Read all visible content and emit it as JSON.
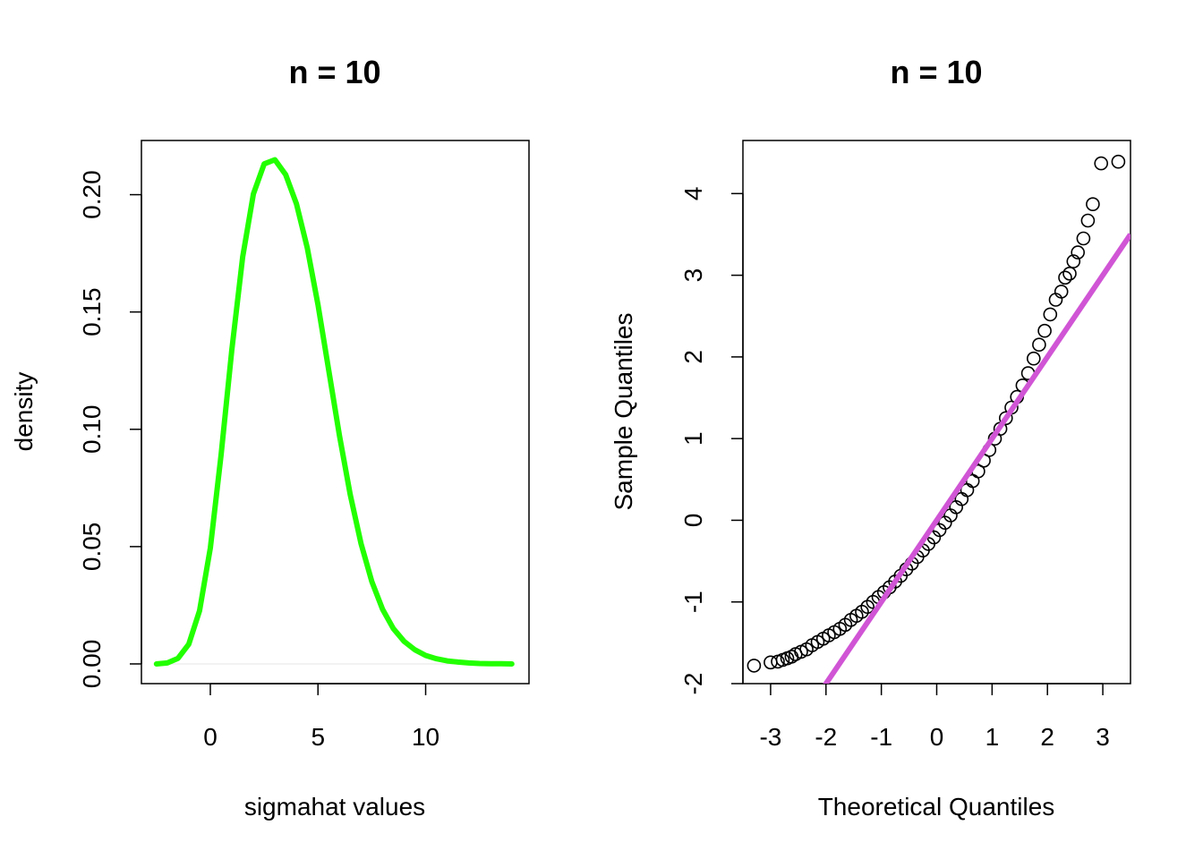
{
  "chart_data": [
    {
      "type": "line",
      "title": "n = 10",
      "xlabel": "sigmahat values",
      "ylabel": "density",
      "xlim": [
        -3.2,
        14.8
      ],
      "ylim": [
        -0.0084,
        0.2231
      ],
      "x_ticks": [
        0,
        5,
        10
      ],
      "x_tick_labels": [
        "0",
        "5",
        "10"
      ],
      "y_ticks": [
        0.0,
        0.05,
        0.1,
        0.15,
        0.2
      ],
      "y_tick_labels": [
        "0.00",
        "0.05",
        "0.10",
        "0.15",
        "0.20"
      ],
      "grid": false,
      "series": [
        {
          "color": "#22ff00",
          "x": [
            -2.5,
            -2,
            -1.5,
            -1,
            -0.5,
            0,
            0.5,
            1,
            1.5,
            2,
            2.5,
            3,
            3.5,
            4,
            4.5,
            5,
            5.5,
            6,
            6.5,
            7,
            7.5,
            8,
            8.5,
            9,
            9.5,
            10,
            10.5,
            11,
            11.5,
            12,
            12.5,
            13,
            13.5,
            14
          ],
          "y": [
            0.0,
            0.0004,
            0.0024,
            0.0084,
            0.0226,
            0.0494,
            0.0891,
            0.1339,
            0.1734,
            0.2003,
            0.2131,
            0.2149,
            0.2085,
            0.1961,
            0.1775,
            0.153,
            0.1251,
            0.0972,
            0.0721,
            0.0512,
            0.0351,
            0.0233,
            0.0151,
            0.0096,
            0.006,
            0.0036,
            0.0022,
            0.0013,
            0.0008,
            0.0004,
            0.0002,
            0.0001,
            0.0001,
            0.0
          ]
        }
      ],
      "baseline": {
        "y": 0,
        "x_range": [
          -2.5,
          14
        ],
        "color": "#e6e6e6"
      }
    },
    {
      "type": "scatter",
      "title": "n = 10",
      "xlabel": "Theoretical Quantiles",
      "ylabel": "Sample Quantiles",
      "xlim": [
        -3.5,
        3.5
      ],
      "ylim": [
        -2.0,
        4.65
      ],
      "x_ticks": [
        -3,
        -2,
        -1,
        0,
        1,
        2,
        3
      ],
      "x_tick_labels": [
        "-3",
        "-2",
        "-1",
        "0",
        "1",
        "2",
        "3"
      ],
      "y_ticks": [
        -2,
        -1,
        0,
        1,
        2,
        3,
        4
      ],
      "y_tick_labels": [
        "-2",
        "-1",
        "0",
        "1",
        "2",
        "3",
        "4"
      ],
      "grid": false,
      "point_color": "#000000",
      "points": {
        "x": [
          -3.3,
          -3.0,
          -2.87,
          -2.78,
          -2.7,
          -2.62,
          -2.55,
          -2.45,
          -2.35,
          -2.25,
          -2.15,
          -2.05,
          -1.95,
          -1.85,
          -1.75,
          -1.65,
          -1.55,
          -1.45,
          -1.35,
          -1.25,
          -1.15,
          -1.05,
          -0.95,
          -0.85,
          -0.75,
          -0.65,
          -0.55,
          -0.45,
          -0.35,
          -0.25,
          -0.15,
          -0.05,
          0.05,
          0.15,
          0.25,
          0.35,
          0.45,
          0.55,
          0.65,
          0.75,
          0.85,
          0.95,
          1.05,
          1.15,
          1.25,
          1.35,
          1.45,
          1.55,
          1.65,
          1.75,
          1.85,
          1.95,
          2.05,
          2.15,
          2.25,
          2.32,
          2.4,
          2.47,
          2.55,
          2.65,
          2.73,
          2.82,
          2.97,
          3.28
        ],
        "y": [
          -1.78,
          -1.74,
          -1.73,
          -1.71,
          -1.69,
          -1.67,
          -1.64,
          -1.61,
          -1.58,
          -1.53,
          -1.49,
          -1.45,
          -1.41,
          -1.37,
          -1.33,
          -1.28,
          -1.22,
          -1.17,
          -1.12,
          -1.06,
          -1.0,
          -0.94,
          -0.88,
          -0.82,
          -0.75,
          -0.68,
          -0.6,
          -0.53,
          -0.45,
          -0.37,
          -0.29,
          -0.21,
          -0.12,
          -0.03,
          0.06,
          0.16,
          0.26,
          0.37,
          0.48,
          0.6,
          0.73,
          0.86,
          1.0,
          1.12,
          1.25,
          1.38,
          1.51,
          1.65,
          1.8,
          1.98,
          2.15,
          2.32,
          2.52,
          2.7,
          2.8,
          2.97,
          3.02,
          3.17,
          3.28,
          3.45,
          3.67,
          3.87,
          4.37,
          4.39
        ]
      },
      "reference_line": {
        "intercept": 0.0,
        "slope": 1.0,
        "color": "#d055d5"
      }
    }
  ]
}
